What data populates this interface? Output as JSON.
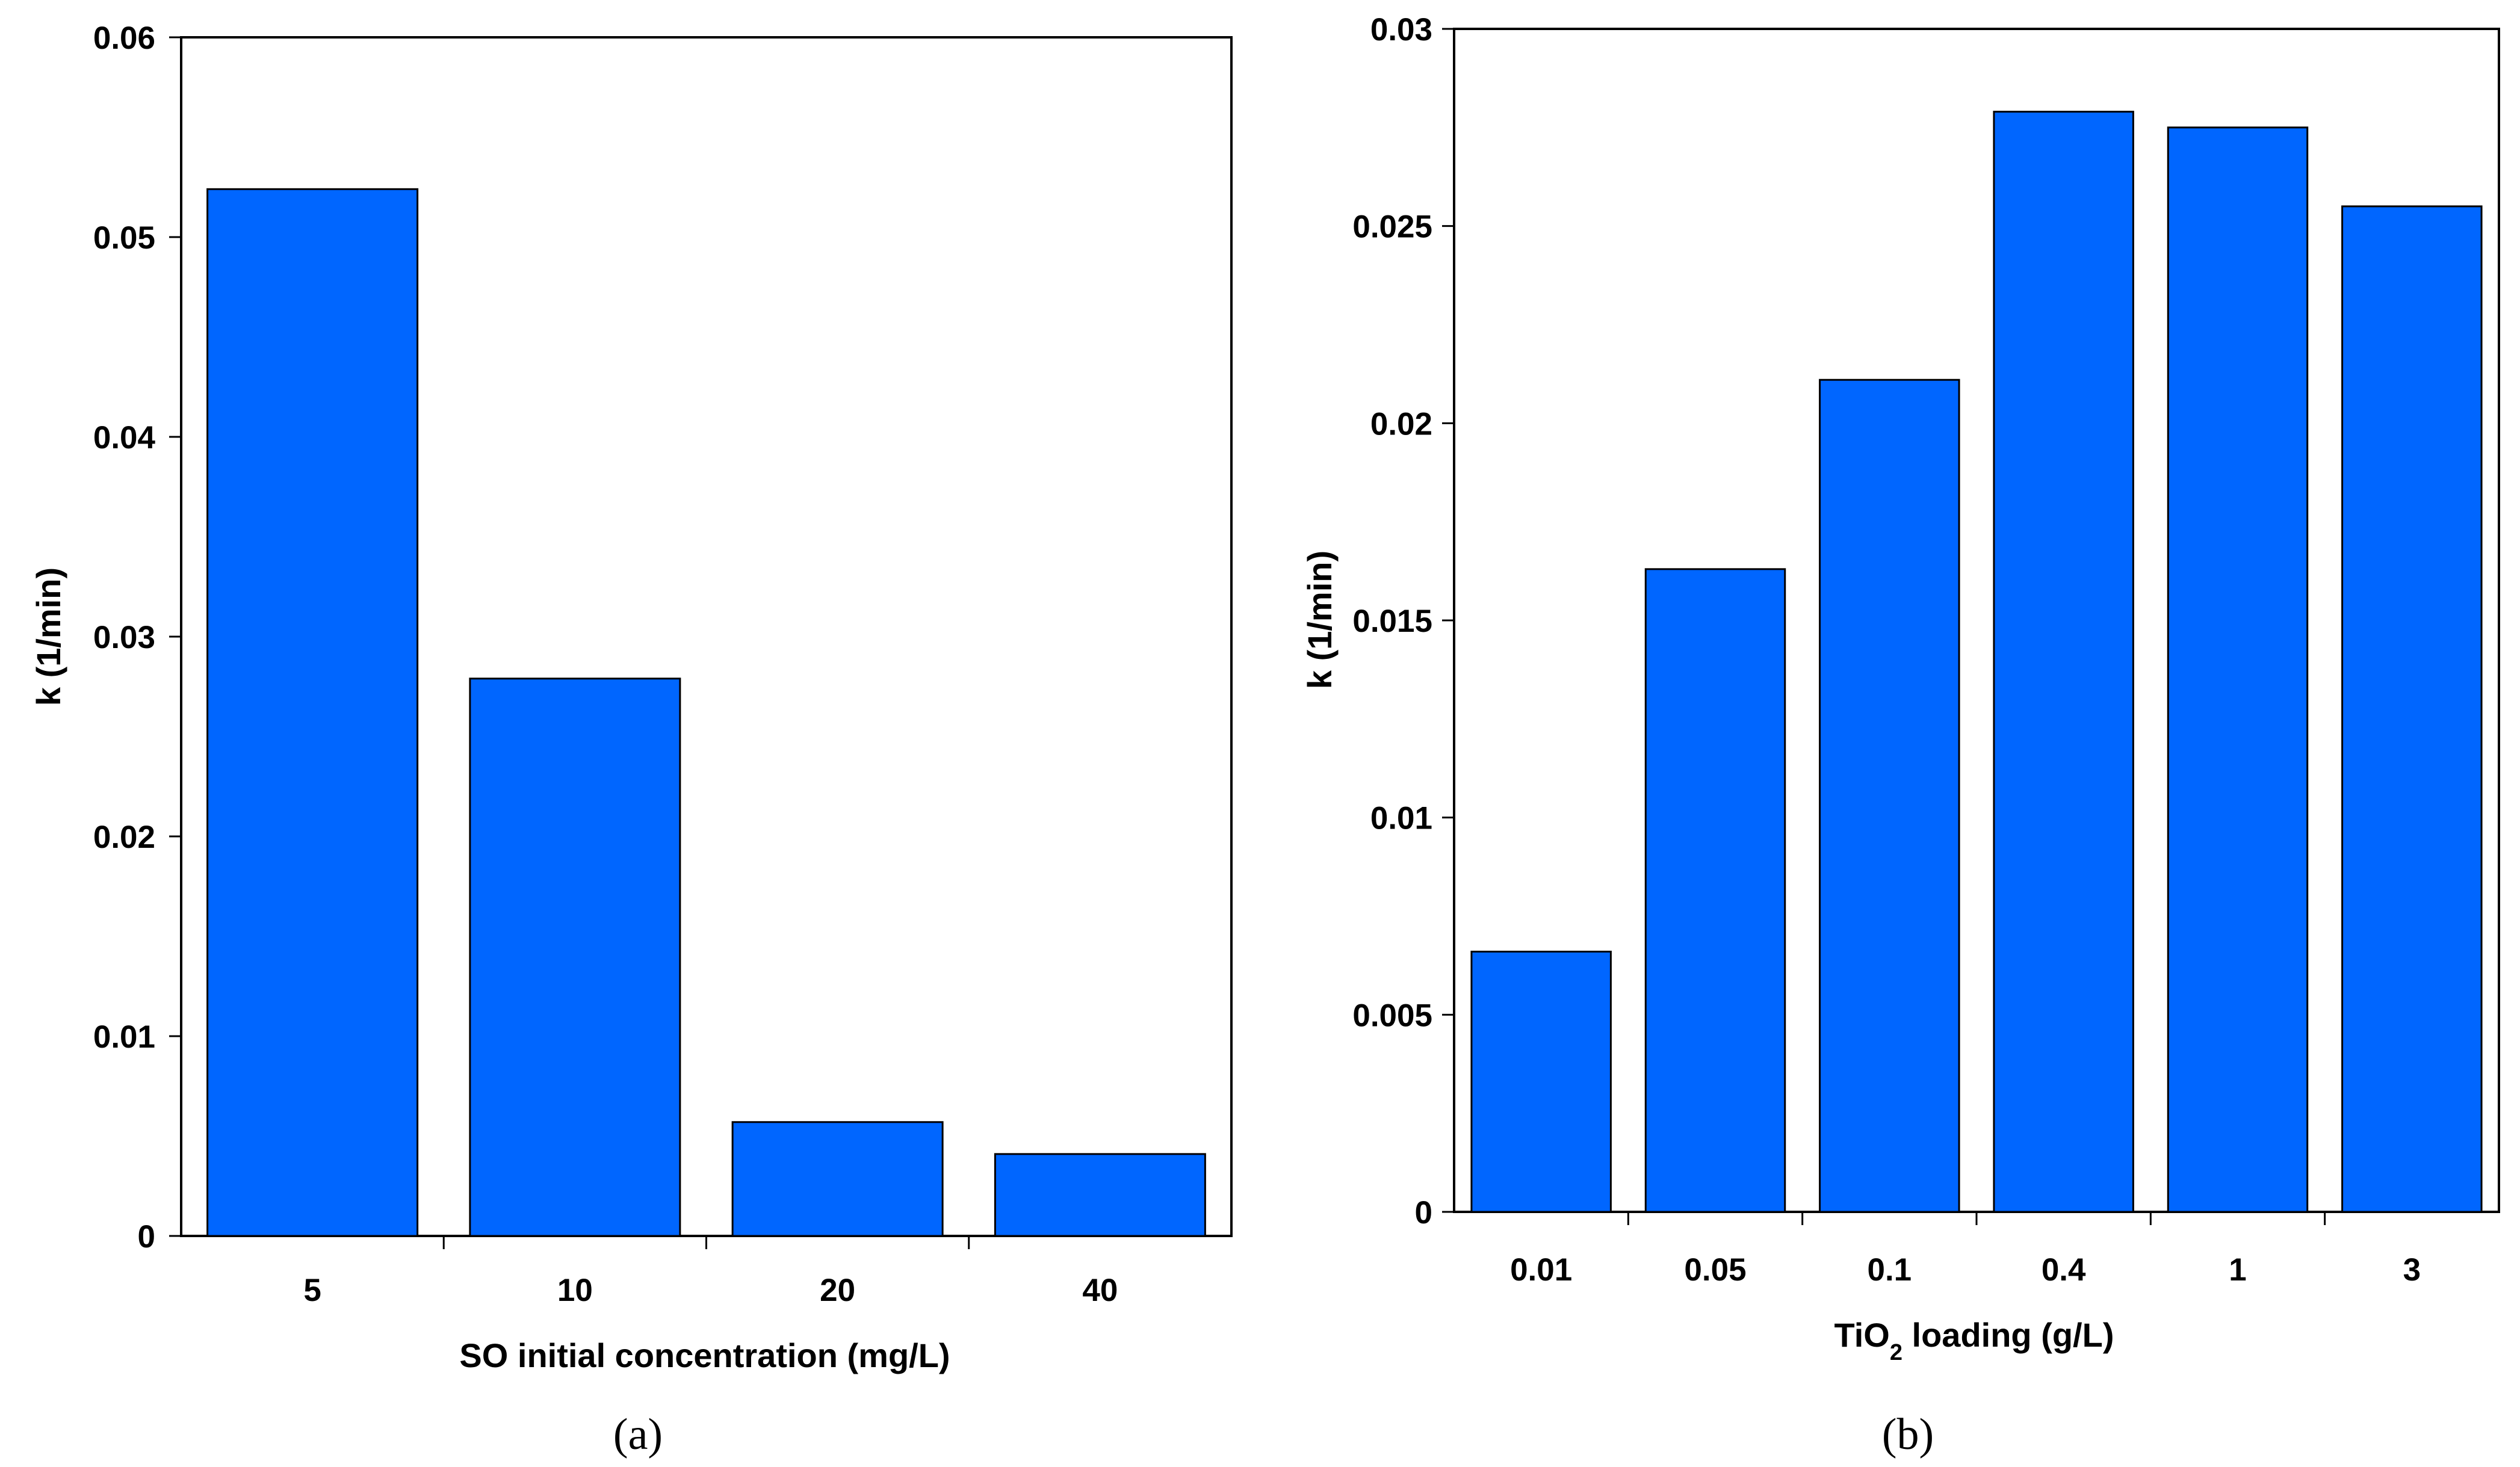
{
  "colors": {
    "bar_fill": "#0066ff",
    "bar_stroke": "#000000",
    "frame": "#000000"
  },
  "chart_data": [
    {
      "type": "bar",
      "panel_label": "(a)",
      "title": "",
      "categories": [
        "5",
        "10",
        "20",
        "40"
      ],
      "values": [
        0.0524,
        0.0279,
        0.0057,
        0.0041
      ],
      "xlabel": "SO initial concentration (mg/L)",
      "ylabel": "k (1/min)",
      "ylim": [
        0,
        0.06
      ],
      "yticks": [
        "0",
        "0.01",
        "0.02",
        "0.03",
        "0.04",
        "0.05",
        "0.06"
      ],
      "grid": false,
      "legend": "none"
    },
    {
      "type": "bar",
      "panel_label": "(b)",
      "title": "",
      "categories": [
        "0.01",
        "0.05",
        "0.1",
        "0.4",
        "1",
        "3"
      ],
      "values": [
        0.0066,
        0.0163,
        0.0211,
        0.0279,
        0.0275,
        0.0255
      ],
      "xlabel_main": "TiO",
      "xlabel_sub": "2",
      "xlabel_rest": " loading (g/L)",
      "ylabel": "k (1/min)",
      "ylim": [
        0,
        0.03
      ],
      "yticks": [
        "0",
        "0.005",
        "0.01",
        "0.015",
        "0.02",
        "0.025",
        "0.03"
      ],
      "grid": false,
      "legend": "none"
    }
  ]
}
